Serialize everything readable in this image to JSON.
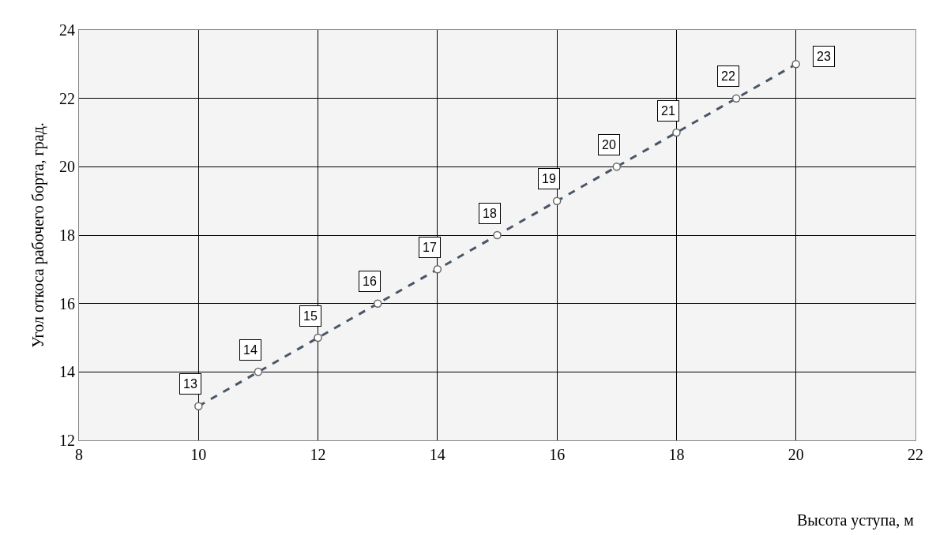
{
  "chart_data": {
    "type": "line",
    "xlabel": "Высота уступа, м",
    "ylabel": "Угол откоса рабочего борта, град.",
    "x": [
      10,
      11,
      12,
      13,
      14,
      15,
      16,
      17,
      18,
      19,
      20
    ],
    "series": [
      {
        "color": "#4a5568",
        "values": [
          13,
          14,
          15,
          16,
          17,
          18,
          19,
          20,
          21,
          22,
          23
        ]
      }
    ],
    "xlim": [
      8,
      22
    ],
    "xticks": [
      8,
      10,
      12,
      14,
      16,
      18,
      20,
      22
    ],
    "ylim": [
      12,
      24
    ],
    "yticks": [
      12,
      14,
      16,
      18,
      20,
      22,
      24
    ],
    "grid": true,
    "marker": "circle",
    "line_style": "dashed",
    "data_labels": true
  }
}
